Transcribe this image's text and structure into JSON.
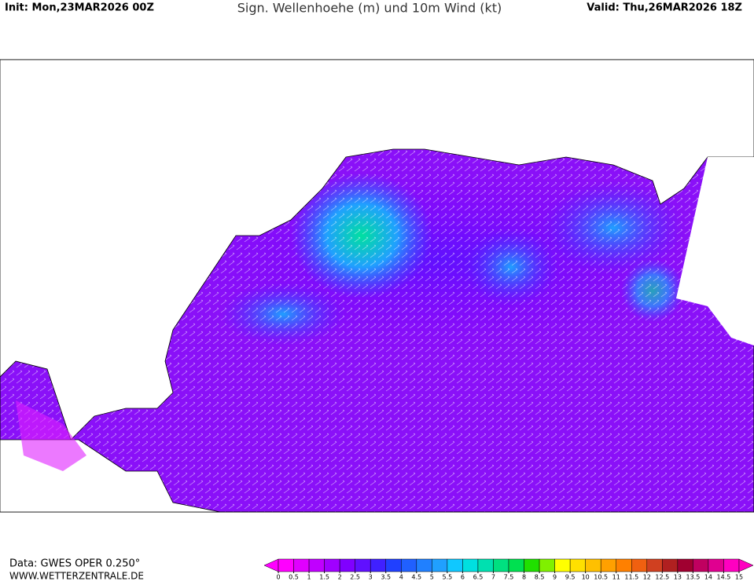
{
  "header": {
    "init": "Init: Mon,23MAR2026 00Z",
    "title": "Sign. Wellenhoehe (m) und 10m Wind (kt)",
    "valid": "Valid: Thu,26MAR2026 18Z"
  },
  "footer": {
    "source": "Data: GWES OPER 0.250°",
    "website": "WWW.WETTERZENTRALE.DE"
  },
  "legend": {
    "ticks": [
      0,
      0.5,
      1,
      1.5,
      2,
      2.5,
      3,
      3.5,
      4,
      4.5,
      5,
      5.5,
      6,
      6.5,
      7,
      7.5,
      8,
      8.5,
      9,
      9.5,
      10,
      10.5,
      11,
      11.5,
      12,
      12.5,
      13,
      13.5,
      14,
      14.5,
      15
    ],
    "colors": [
      "#ff00ff",
      "#e000ff",
      "#c000ff",
      "#a000ff",
      "#8000ff",
      "#6010ff",
      "#4020ff",
      "#2040ff",
      "#2060ff",
      "#2080ff",
      "#20a0ff",
      "#10c8ff",
      "#00e0e0",
      "#00e0b0",
      "#00e080",
      "#00e050",
      "#20e000",
      "#80f000",
      "#ffff00",
      "#ffe000",
      "#ffc000",
      "#ffa000",
      "#ff8000",
      "#f06010",
      "#d04020",
      "#b02020",
      "#a00030",
      "#c00060",
      "#e00090",
      "#ff00c0"
    ]
  }
}
